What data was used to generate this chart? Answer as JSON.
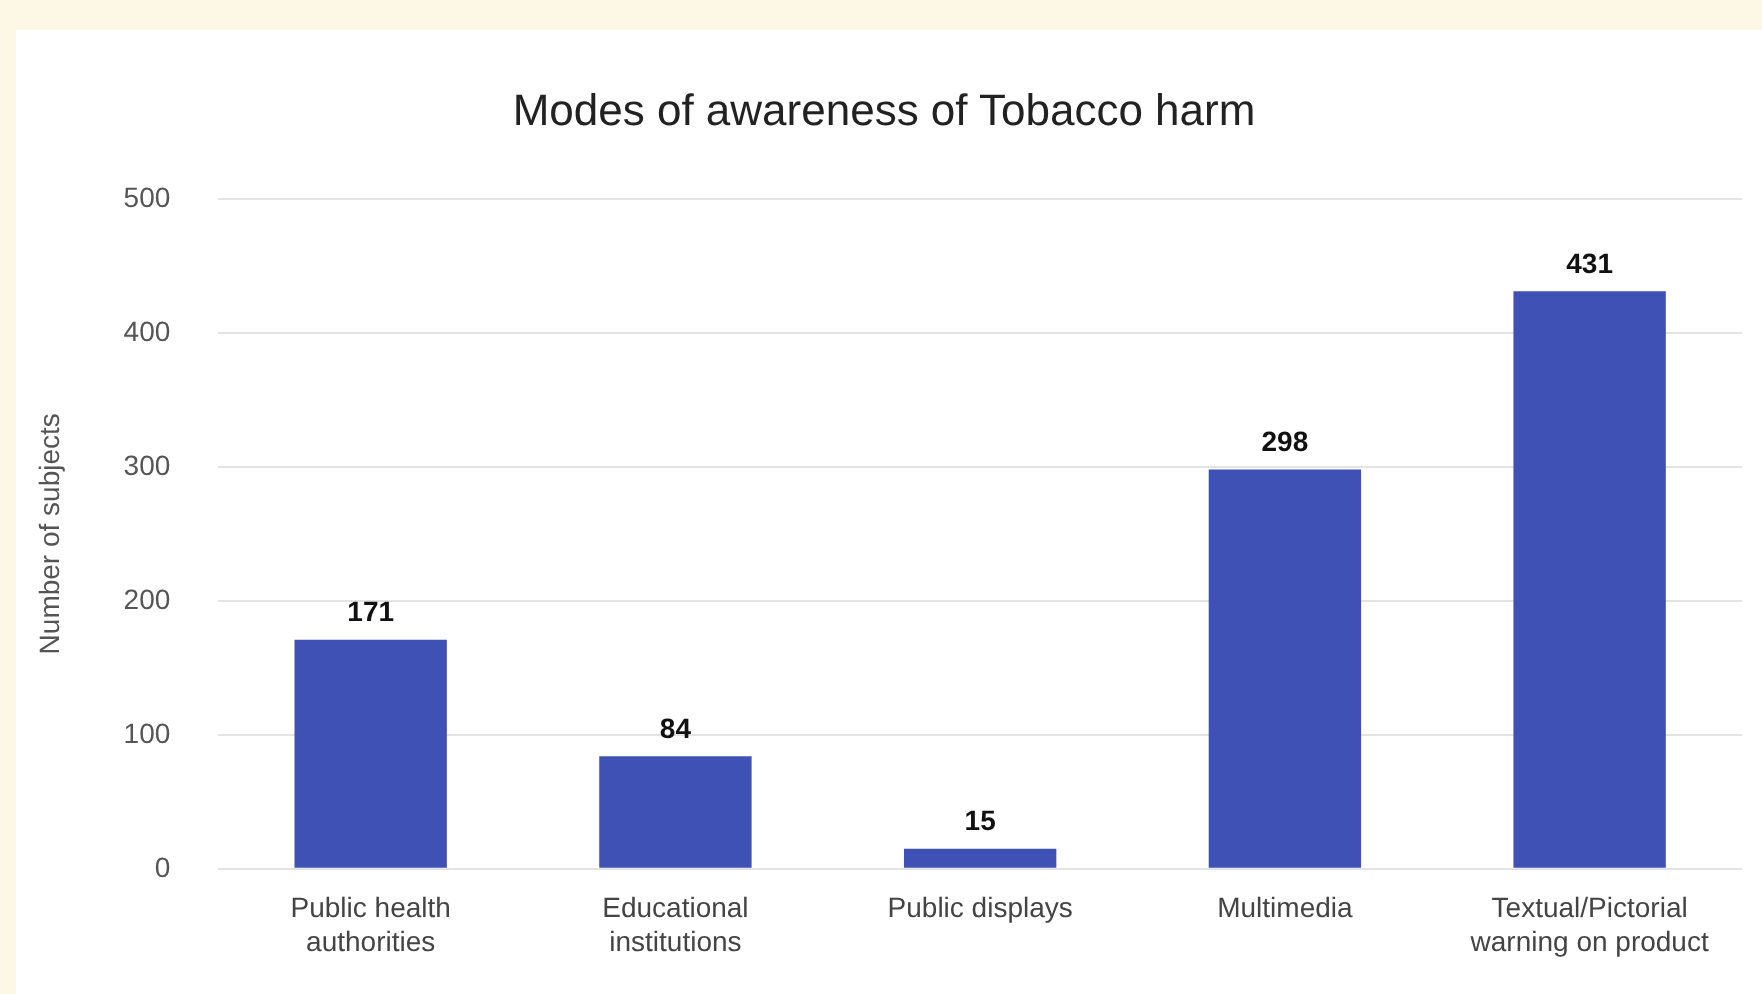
{
  "chart_data": {
    "type": "bar",
    "title": "Modes of awareness of Tobacco harm",
    "ylabel": "Number of subjects",
    "categories": [
      "Public health authorities",
      "Educational institutions",
      "Public displays",
      "Multimedia",
      "Textual/Pictorial warning on product"
    ],
    "values": [
      171,
      84,
      15,
      298,
      431
    ],
    "color": "#3f51b5",
    "ylim": [
      0,
      500
    ],
    "yticks": [
      0,
      100,
      200,
      300,
      400,
      500
    ],
    "grid": "y",
    "data_labels": true,
    "legend": false
  }
}
